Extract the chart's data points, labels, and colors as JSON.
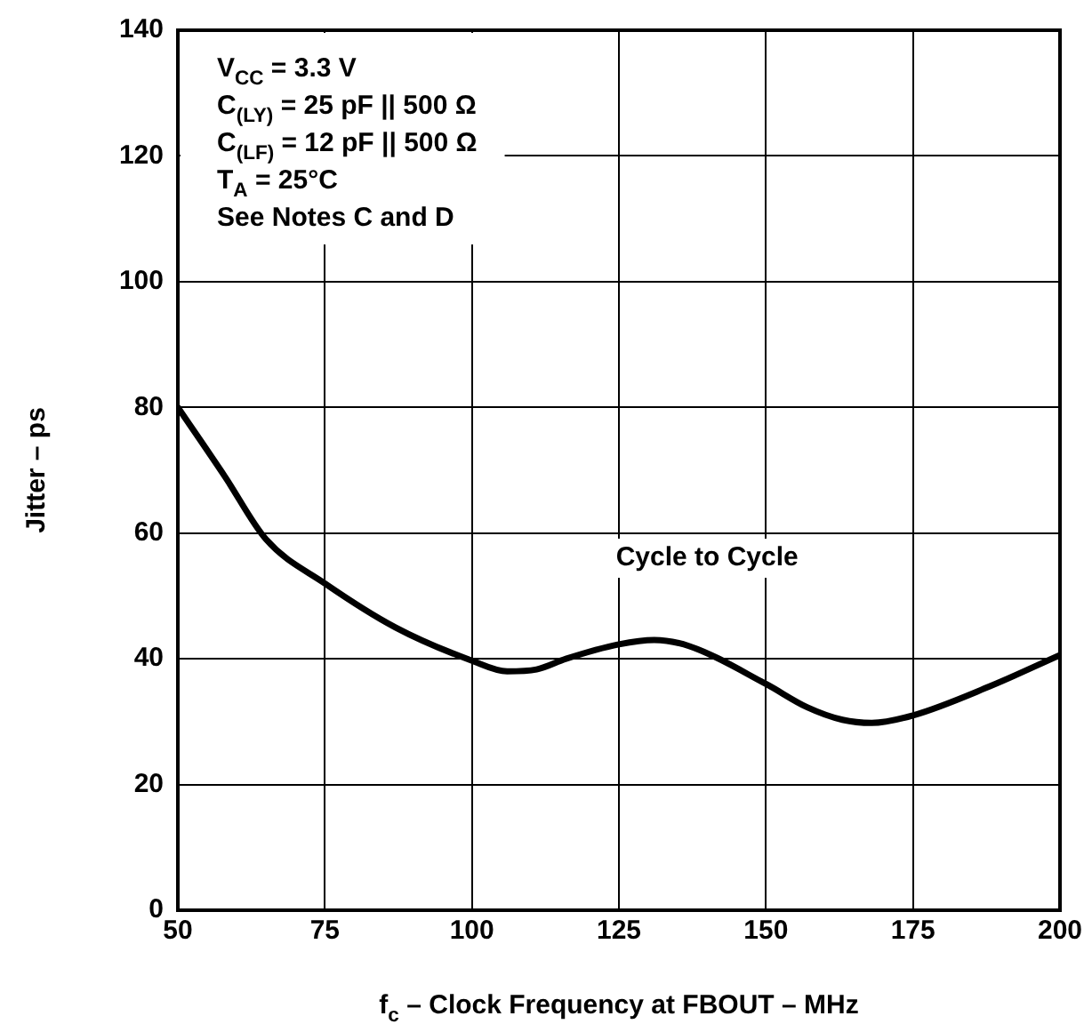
{
  "chart_data": {
    "type": "line",
    "xlabel": "f$_{c}$ – Clock Frequency at FBOUT – MHz",
    "ylabel": "Jitter – ps",
    "annotations": [
      "V$_{CC}$ = 3.3 V",
      "C$_{(LY)}$ = 25 pF || 500 Ω",
      "C$_{(LF)}$ = 12 pF || 500 Ω",
      "T$_{A}$ = 25°C",
      "See Notes C and D"
    ],
    "x": [
      50,
      58,
      65,
      75,
      87,
      100,
      106,
      111,
      116,
      125,
      131,
      137,
      150,
      157,
      163,
      168,
      175,
      188,
      200
    ],
    "series": [
      {
        "name": "Cycle to Cycle",
        "color": "#000000",
        "values": [
          80,
          69,
          59,
          52,
          45,
          39.7,
          38,
          38.3,
          40,
          42.3,
          43,
          42,
          36,
          32.3,
          30.3,
          29.8,
          31,
          35.6,
          40.6
        ]
      }
    ],
    "xlim": [
      50,
      200
    ],
    "xticks": [
      50,
      75,
      100,
      125,
      150,
      175,
      200
    ],
    "ylim": [
      0,
      140
    ],
    "yticks": [
      0,
      20,
      40,
      60,
      80,
      100,
      120,
      140
    ],
    "grid": true,
    "legend": false,
    "marker": "none",
    "line_style": "solid"
  }
}
